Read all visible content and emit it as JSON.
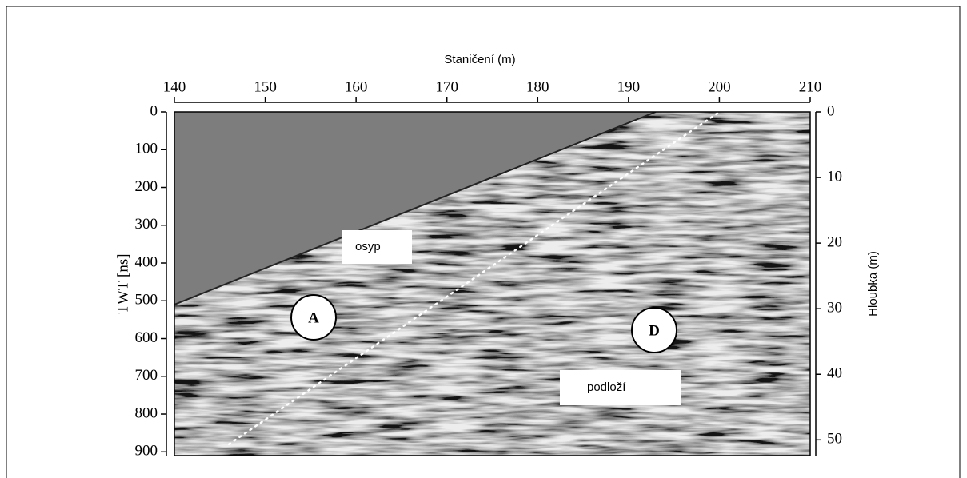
{
  "chart_data": {
    "type": "radargram",
    "xlabel": "Staničení (m)",
    "ylabel": "TWT [ns]",
    "y2label": "Hloubka (m)",
    "xlim": [
      140,
      210
    ],
    "xticks": [
      140,
      150,
      160,
      170,
      180,
      190,
      200,
      210
    ],
    "ylim": [
      0,
      910
    ],
    "yticks": [
      0,
      100,
      200,
      300,
      400,
      500,
      600,
      700,
      800,
      900
    ],
    "y2lim": [
      0,
      52.4
    ],
    "y2ticks": [
      0,
      10,
      20,
      30,
      40,
      50
    ],
    "surface": {
      "x": [
        140,
        193
      ],
      "y": [
        510,
        0
      ]
    },
    "boundary": {
      "x": [
        146,
        200
      ],
      "y": [
        880,
        0
      ]
    },
    "annotations": [
      "osyp",
      "podloží"
    ],
    "markers": [
      "A",
      "D"
    ]
  }
}
